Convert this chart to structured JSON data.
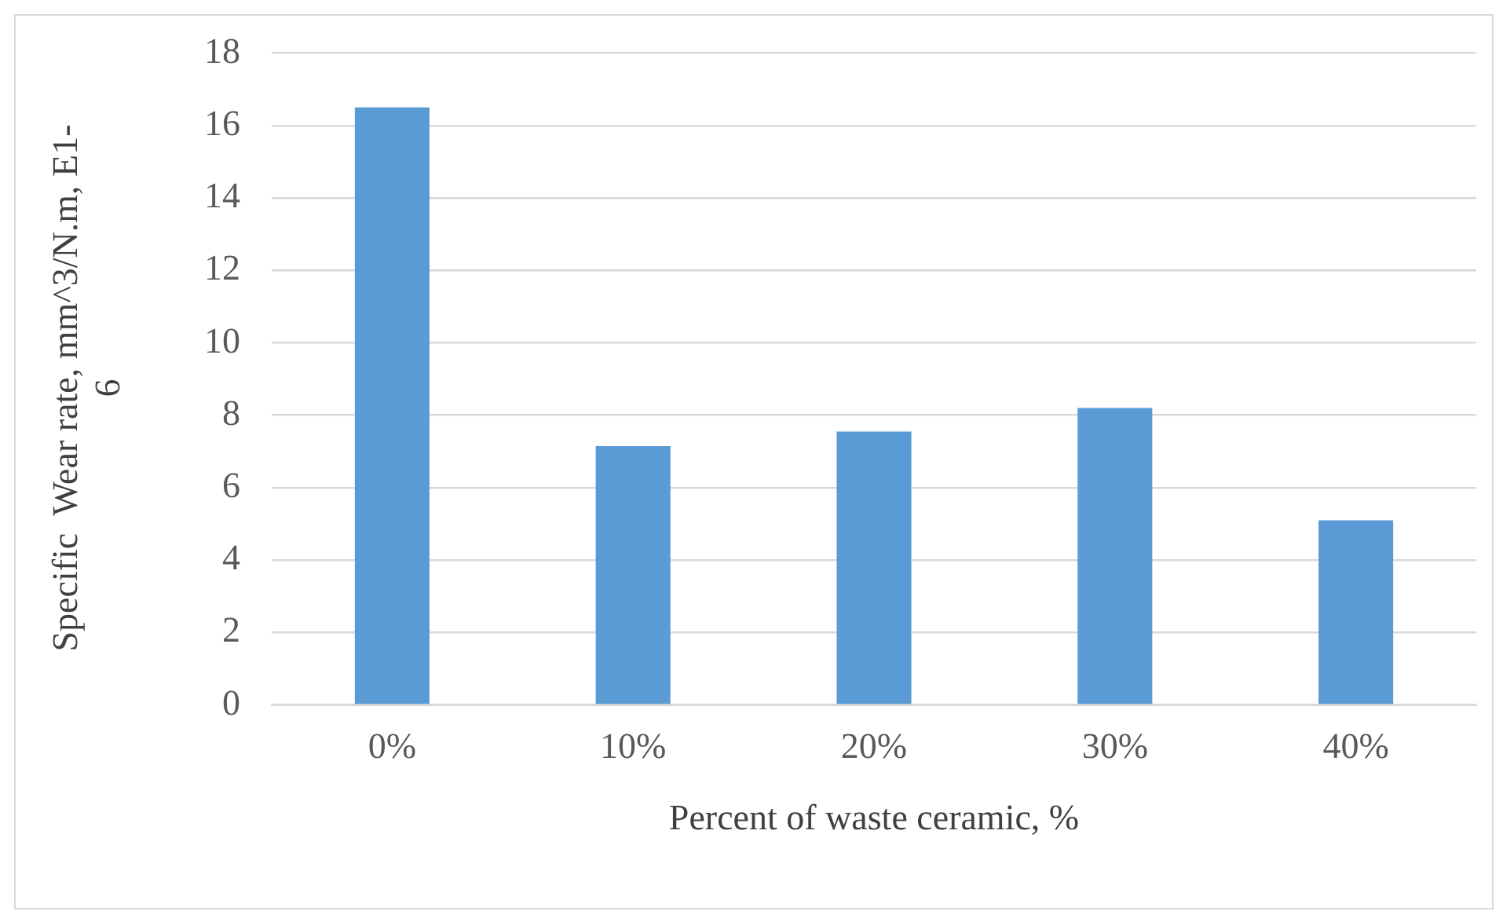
{
  "chart_data": {
    "type": "bar",
    "categories": [
      "0%",
      "10%",
      "20%",
      "30%",
      "40%"
    ],
    "values": [
      16.5,
      7.15,
      7.55,
      8.2,
      5.1
    ],
    "color": "#5b9bd5",
    "xlabel": "Percent of waste ceramic, %",
    "ylabel": "Specific  Wear rate, mm^3/N.m, E1-6",
    "ylim": [
      0,
      18
    ],
    "yticks": [
      0,
      2,
      4,
      6,
      8,
      10,
      12,
      14,
      16,
      18
    ],
    "grid": "y",
    "legend": false
  }
}
